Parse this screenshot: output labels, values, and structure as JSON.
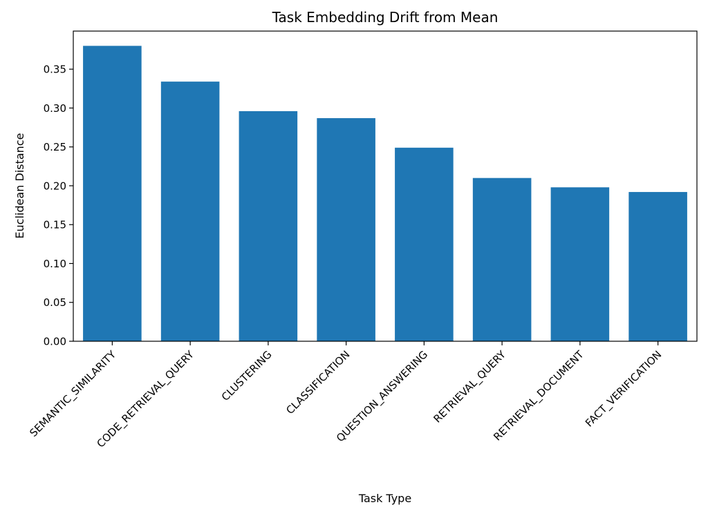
{
  "chart_data": {
    "type": "bar",
    "title": "Task Embedding Drift from Mean",
    "xlabel": "Task Type",
    "ylabel": "Euclidean Distance",
    "categories": [
      "SEMANTIC_SIMILARITY",
      "CODE_RETRIEVAL_QUERY",
      "CLUSTERING",
      "CLASSIFICATION",
      "QUESTION_ANSWERING",
      "RETRIEVAL_QUERY",
      "RETRIEVAL_DOCUMENT",
      "FACT_VERIFICATION"
    ],
    "values": [
      0.38,
      0.334,
      0.296,
      0.287,
      0.249,
      0.21,
      0.198,
      0.192
    ],
    "ylim": [
      0,
      0.399
    ],
    "yticks": [
      0.0,
      0.05,
      0.1,
      0.15,
      0.2,
      0.25,
      0.3,
      0.35
    ],
    "ytick_labels": [
      "0.00",
      "0.05",
      "0.10",
      "0.15",
      "0.20",
      "0.25",
      "0.30",
      "0.35"
    ],
    "grid": false,
    "legend": "none",
    "bar_color": "#1f77b4"
  }
}
